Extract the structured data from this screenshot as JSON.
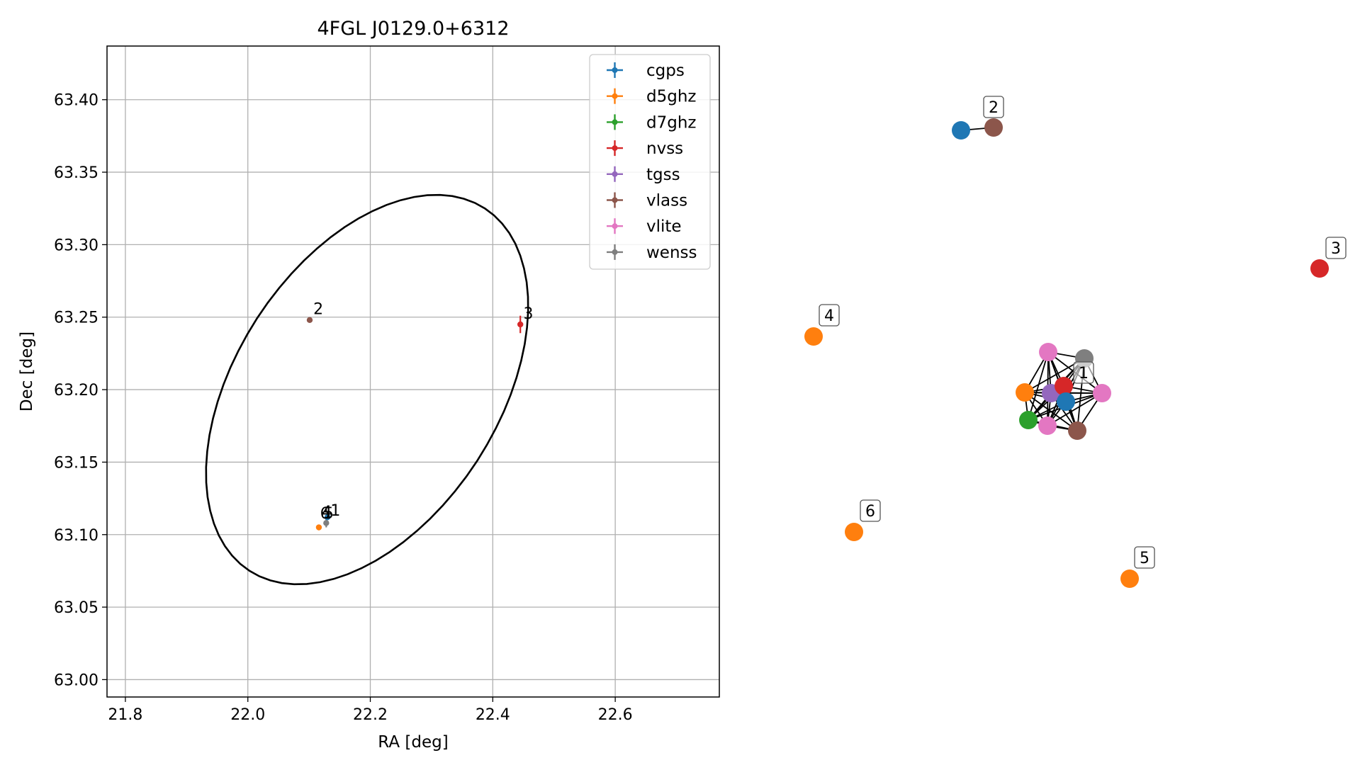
{
  "chart_data": [
    {
      "type": "scatter",
      "title": "4FGL J0129.0+6312",
      "xlabel": "RA [deg]",
      "ylabel": "Dec [deg]",
      "xlim": [
        21.77,
        22.77
      ],
      "ylim": [
        62.988,
        63.437
      ],
      "x_ticks": [
        21.8,
        22.0,
        22.2,
        22.4,
        22.6
      ],
      "x_tick_labels": [
        "21.8",
        "22.0",
        "22.2",
        "22.4",
        "22.6"
      ],
      "y_ticks": [
        63.0,
        63.05,
        63.1,
        63.15,
        63.2,
        63.25,
        63.3,
        63.35,
        63.4
      ],
      "y_tick_labels": [
        "63.00",
        "63.05",
        "63.10",
        "63.15",
        "63.20",
        "63.25",
        "63.30",
        "63.35",
        "63.40"
      ],
      "grid": true,
      "legend_position": "top-right",
      "series": [
        {
          "name": "cgps",
          "color": "#1f77b4"
        },
        {
          "name": "d5ghz",
          "color": "#ff7f0e"
        },
        {
          "name": "d7ghz",
          "color": "#2ca02c"
        },
        {
          "name": "nvss",
          "color": "#d62728"
        },
        {
          "name": "tgss",
          "color": "#9467bd"
        },
        {
          "name": "vlass",
          "color": "#8c564b"
        },
        {
          "name": "vlite",
          "color": "#e377c2"
        },
        {
          "name": "wenss",
          "color": "#7f7f7f"
        }
      ],
      "points": [
        {
          "series": "d5ghz",
          "x": 22.116,
          "y": 63.105,
          "yerr": 0.002
        },
        {
          "series": "wenss",
          "x": 22.128,
          "y": 63.108,
          "yerr": 0.003
        },
        {
          "series": "vlass",
          "x": 22.101,
          "y": 63.248,
          "yerr": 0.001
        },
        {
          "series": "nvss",
          "x": 22.445,
          "y": 63.245,
          "yerr": 0.006
        },
        {
          "series": "cgps",
          "x": 22.13,
          "y": 63.112,
          "yerr": 0.002
        }
      ],
      "source_labels": [
        {
          "text": "2",
          "x": 22.107,
          "y": 63.252
        },
        {
          "text": "3",
          "x": 22.45,
          "y": 63.249
        },
        {
          "text": "6",
          "x": 22.118,
          "y": 63.111
        },
        {
          "text": "4",
          "x": 22.121,
          "y": 63.112
        },
        {
          "text": "5",
          "x": 22.124,
          "y": 63.111
        },
        {
          "text": "1",
          "x": 22.135,
          "y": 63.113
        }
      ],
      "ellipse": {
        "center": [
          22.28,
          63.212
        ],
        "type": "error ellipse"
      }
    },
    {
      "type": "network",
      "node_labels": [
        "1",
        "2",
        "3",
        "4",
        "5",
        "6"
      ],
      "nodes": [
        {
          "id": "a1",
          "color": "#1f77b4"
        },
        {
          "id": "a2",
          "color": "#d62728"
        },
        {
          "id": "a3",
          "color": "#9467bd"
        },
        {
          "id": "a4",
          "color": "#ff7f0e"
        },
        {
          "id": "a5",
          "color": "#2ca02c"
        },
        {
          "id": "a6",
          "color": "#e377c2"
        },
        {
          "id": "a7",
          "color": "#e377c2"
        },
        {
          "id": "a8",
          "color": "#e377c2"
        },
        {
          "id": "a9",
          "color": "#7f7f7f"
        },
        {
          "id": "a10",
          "color": "#8c564b"
        },
        {
          "id": "b1",
          "color": "#1f77b4"
        },
        {
          "id": "b2",
          "color": "#8c564b"
        },
        {
          "id": "c1",
          "color": "#d62728"
        },
        {
          "id": "d1",
          "color": "#ff7f0e"
        },
        {
          "id": "e1",
          "color": "#ff7f0e"
        },
        {
          "id": "f1",
          "color": "#ff7f0e"
        }
      ]
    }
  ]
}
